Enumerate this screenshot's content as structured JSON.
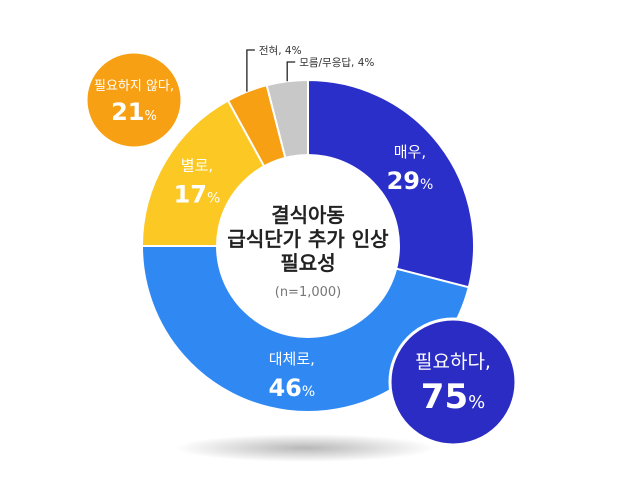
{
  "chart_data": {
    "type": "pie",
    "title_lines": [
      "결식아동",
      "급식단가 추가 인상",
      "필요성"
    ],
    "n_label": "(n=1,000)",
    "slices": [
      {
        "name": "매우,",
        "value": 29,
        "value_label": "29",
        "color": "#2b2fc9"
      },
      {
        "name": "대체로,",
        "value": 46,
        "value_label": "46",
        "color": "#3089f3"
      },
      {
        "name": "별로,",
        "value": 17,
        "value_label": "17",
        "color": "#fbc824"
      },
      {
        "name": "전혀, 4%",
        "value": 4,
        "value_label": "4",
        "color": "#f8a013"
      },
      {
        "name": "모름/무응답, 4%",
        "value": 4,
        "value_label": "4",
        "color": "#c8c8c8"
      }
    ],
    "summary": [
      {
        "label": "필요하다,",
        "value": 75,
        "value_label": "75",
        "color": "#2a2cc4"
      },
      {
        "label": "필요하지 않다,",
        "value": 21,
        "value_label": "21",
        "color": "#f8a013"
      }
    ],
    "percent_sign": "%"
  }
}
